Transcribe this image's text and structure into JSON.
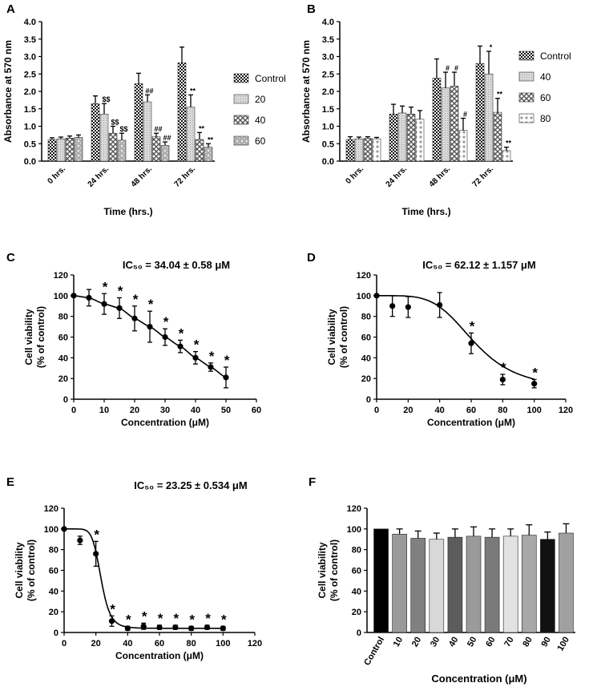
{
  "colors": {
    "black": "#000000",
    "control": "#2a2a2a",
    "light": "#c8c8c8",
    "mid": "#9a9a9a",
    "dark": "#6a6a6a"
  },
  "chart_data": [
    {
      "id": "A",
      "panel_label": "A",
      "type": "bar",
      "xlabel": "Time (hrs.)",
      "ylabel": "Absorbance at 570 nm",
      "ylim": [
        0,
        4.0
      ],
      "yticks": [
        "0.0",
        "0.5",
        "1.0",
        "1.5",
        "2.0",
        "2.5",
        "3.0",
        "3.5",
        "4.0"
      ],
      "categories": [
        "0 hrs.",
        "24 hrs.",
        "48 hrs.",
        "72 hrs."
      ],
      "legend_position": "right",
      "series": [
        {
          "name": "Control",
          "values": [
            0.62,
            1.65,
            2.22,
            2.82
          ],
          "errors": [
            0.05,
            0.22,
            0.3,
            0.45
          ],
          "annotations": [
            "",
            "",
            "",
            ""
          ]
        },
        {
          "name": "20",
          "values": [
            0.64,
            1.35,
            1.7,
            1.55
          ],
          "errors": [
            0.05,
            0.3,
            0.2,
            0.35
          ],
          "annotations": [
            "",
            "$$",
            "##",
            "**"
          ]
        },
        {
          "name": "40",
          "values": [
            0.66,
            0.8,
            0.7,
            0.62
          ],
          "errors": [
            0.06,
            0.2,
            0.1,
            0.2
          ],
          "annotations": [
            "",
            "$$",
            "##",
            "**"
          ]
        },
        {
          "name": "60",
          "values": [
            0.68,
            0.6,
            0.45,
            0.4
          ],
          "errors": [
            0.07,
            0.2,
            0.1,
            0.1
          ],
          "annotations": [
            "",
            "$$",
            "##",
            "**"
          ]
        }
      ]
    },
    {
      "id": "B",
      "panel_label": "B",
      "type": "bar",
      "xlabel": "Time (hrs.)",
      "ylabel": "Absorbance at 570 nm",
      "ylim": [
        0,
        4.0
      ],
      "yticks": [
        "0.0",
        "0.5",
        "1.0",
        "1.5",
        "2.0",
        "2.5",
        "3.0",
        "3.5",
        "4.0"
      ],
      "categories": [
        "0 hrs.",
        "24 hrs.",
        "48 hrs.",
        "72 hrs."
      ],
      "legend_position": "right",
      "series": [
        {
          "name": "Control",
          "values": [
            0.62,
            1.35,
            2.38,
            2.8
          ],
          "errors": [
            0.08,
            0.28,
            0.55,
            0.5
          ],
          "annotations": [
            "",
            "",
            "",
            ""
          ]
        },
        {
          "name": "40",
          "values": [
            0.64,
            1.38,
            2.1,
            2.5
          ],
          "errors": [
            0.05,
            0.2,
            0.45,
            0.65
          ],
          "annotations": [
            "",
            "",
            "#",
            "*"
          ]
        },
        {
          "name": "60",
          "values": [
            0.65,
            1.35,
            2.15,
            1.4
          ],
          "errors": [
            0.05,
            0.2,
            0.4,
            0.4
          ],
          "annotations": [
            "",
            "",
            "#",
            "**"
          ]
        },
        {
          "name": "80",
          "values": [
            0.64,
            1.2,
            0.88,
            0.3
          ],
          "errors": [
            0.04,
            0.25,
            0.35,
            0.1
          ],
          "annotations": [
            "",
            "",
            "#",
            "**"
          ]
        }
      ]
    },
    {
      "id": "C",
      "panel_label": "C",
      "type": "scatter",
      "title": "IC₅₀ = 34.04 ± 0.58 μM",
      "xlabel": "Concentration (μM)",
      "ylabel": "Cell viability (% of control)",
      "ylabel_lines": [
        "Cell viability",
        "(% of control)"
      ],
      "xlim": [
        0,
        60
      ],
      "ylim": [
        0,
        120
      ],
      "xticks": [
        "0",
        "10",
        "20",
        "30",
        "40",
        "50",
        "60"
      ],
      "yticks": [
        "0",
        "20",
        "40",
        "60",
        "80",
        "100",
        "120"
      ],
      "x": [
        0,
        5,
        10,
        15,
        20,
        25,
        30,
        35,
        40,
        45,
        50
      ],
      "y": [
        100,
        98,
        92,
        88,
        78,
        70,
        60,
        51,
        40,
        31,
        21
      ],
      "errors": [
        0,
        8,
        10,
        10,
        12,
        15,
        8,
        6,
        6,
        4,
        10
      ],
      "stars": [
        "",
        "",
        "*",
        "*",
        "*",
        "*",
        "*",
        "*",
        "*",
        "*",
        "*"
      ],
      "fit": {
        "model": "linear-decline",
        "top": 100,
        "ic50": 34.04,
        "hill": 1.5
      }
    },
    {
      "id": "D",
      "panel_label": "D",
      "type": "scatter",
      "title": "IC₅₀ = 62.12 ± 1.157 μM",
      "xlabel": "Concentration (μM)",
      "ylabel": "Cell viability (% of control)",
      "ylabel_lines": [
        "Cell viability",
        "(% of control)"
      ],
      "xlim": [
        0,
        120
      ],
      "ylim": [
        0,
        120
      ],
      "xticks": [
        "0",
        "20",
        "40",
        "60",
        "80",
        "100",
        "120"
      ],
      "yticks": [
        "0",
        "20",
        "40",
        "60",
        "80",
        "100",
        "120"
      ],
      "x": [
        0,
        10,
        20,
        40,
        60,
        80,
        100
      ],
      "y": [
        100,
        90,
        89,
        91,
        54,
        19,
        15
      ],
      "errors": [
        0,
        10,
        10,
        12,
        10,
        5,
        4
      ],
      "stars": [
        "",
        "",
        "",
        "",
        "*",
        "*",
        "*"
      ],
      "fit": {
        "model": "hill",
        "top": 100,
        "bottom": 10,
        "ic50": 62.12,
        "hill": 4.5
      }
    },
    {
      "id": "E",
      "panel_label": "E",
      "type": "scatter",
      "title": "IC₅₀ = 23.25 ± 0.534 μM",
      "xlabel": "Concentration (μM)",
      "ylabel": "Cell viability (% of control)",
      "ylabel_lines": [
        "Cell viability",
        "(% of control)"
      ],
      "xlim": [
        0,
        120
      ],
      "ylim": [
        0,
        120
      ],
      "xticks": [
        "0",
        "20",
        "40",
        "60",
        "80",
        "100",
        "120"
      ],
      "yticks": [
        "0",
        "20",
        "40",
        "60",
        "80",
        "100",
        "120"
      ],
      "x": [
        0,
        10,
        20,
        30,
        40,
        50,
        60,
        70,
        80,
        90,
        100
      ],
      "y": [
        100,
        89,
        76,
        11,
        4,
        6,
        5,
        5,
        4,
        5,
        4
      ],
      "errors": [
        0,
        4,
        12,
        5,
        2,
        3,
        2,
        2,
        2,
        2,
        2
      ],
      "stars": [
        "",
        "",
        "*",
        "*",
        "*",
        "*",
        "*",
        "*",
        "*",
        "*",
        "*"
      ],
      "fit": {
        "model": "hill",
        "top": 100,
        "bottom": 4,
        "ic50": 23.25,
        "hill": 8
      }
    },
    {
      "id": "F",
      "panel_label": "F",
      "type": "bar",
      "xlabel": "Concentration (μM)",
      "ylabel": "Cell viability (% of control)",
      "ylabel_lines": [
        "Cell viability",
        "(% of control)"
      ],
      "ylim": [
        0,
        120
      ],
      "yticks": [
        "0",
        "20",
        "40",
        "60",
        "80",
        "100",
        "120"
      ],
      "categories": [
        "Control",
        "10",
        "20",
        "30",
        "40",
        "50",
        "60",
        "70",
        "80",
        "90",
        "100"
      ],
      "values": [
        100,
        95,
        91,
        90,
        92,
        93,
        92,
        93,
        94,
        90,
        96
      ],
      "errors": [
        0,
        5,
        7,
        6,
        8,
        9,
        8,
        7,
        10,
        7,
        9
      ],
      "bar_colors": [
        "#000000",
        "#9a9a9a",
        "#808080",
        "#d8d8d8",
        "#5c5c5c",
        "#9a9a9a",
        "#7a7a7a",
        "#e2e2e2",
        "#a8a8a8",
        "#111111",
        "#a0a0a0"
      ]
    }
  ]
}
